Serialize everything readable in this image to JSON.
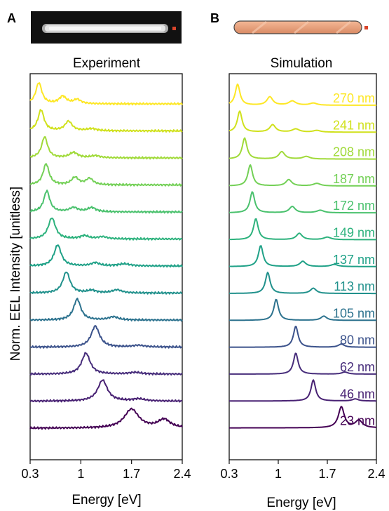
{
  "panels": {
    "a": {
      "letter": "A",
      "title": "Experiment",
      "ylabel": "Norm. EEL Intensity [unitless]",
      "xlabel": "Energy [eV]",
      "image": "sem-nanorod-micrograph"
    },
    "b": {
      "letter": "B",
      "title": "Simulation",
      "xlabel": "Energy [eV]",
      "image": "nanorod-schematic"
    }
  },
  "colors": {
    "probe_marker": "#d9452b",
    "rod_fill": "#e8a07a",
    "rod_stroke": "#444444",
    "micrograph_bg": "#111111"
  },
  "chart_data": [
    {
      "type": "line",
      "title": "Experiment",
      "xlabel": "Energy [eV]",
      "ylabel": "Norm. EEL Intensity [unitless]",
      "xlim": [
        0.3,
        2.4
      ],
      "xticks": [
        "0.3",
        "1",
        "1.7",
        "2.4"
      ],
      "grid": false,
      "legend": "none",
      "series": [
        {
          "color": "#fde725",
          "peaks": [
            [
              0.42,
              1.0,
              0.05
            ],
            [
              0.75,
              0.35,
              0.06
            ],
            [
              0.95,
              0.2,
              0.06
            ]
          ]
        },
        {
          "color": "#d0e11c",
          "peaks": [
            [
              0.45,
              1.0,
              0.05
            ],
            [
              0.83,
              0.45,
              0.06
            ],
            [
              1.15,
              0.1,
              0.08
            ]
          ]
        },
        {
          "color": "#a0da39",
          "peaks": [
            [
              0.5,
              1.0,
              0.05
            ],
            [
              0.9,
              0.25,
              0.07
            ],
            [
              1.2,
              0.1,
              0.08
            ]
          ]
        },
        {
          "color": "#73d056",
          "peaks": [
            [
              0.52,
              1.0,
              0.05
            ],
            [
              0.92,
              0.35,
              0.06
            ],
            [
              1.12,
              0.3,
              0.06
            ]
          ]
        },
        {
          "color": "#4ac16d",
          "peaks": [
            [
              0.53,
              1.0,
              0.05
            ],
            [
              0.9,
              0.2,
              0.07
            ],
            [
              1.15,
              0.2,
              0.07
            ]
          ]
        },
        {
          "color": "#2db27d",
          "peaks": [
            [
              0.6,
              1.0,
              0.06
            ],
            [
              1.05,
              0.15,
              0.07
            ],
            [
              1.3,
              0.1,
              0.08
            ]
          ]
        },
        {
          "color": "#1fa187",
          "peaks": [
            [
              0.68,
              1.0,
              0.06
            ],
            [
              1.2,
              0.15,
              0.07
            ],
            [
              1.6,
              0.1,
              0.1
            ]
          ]
        },
        {
          "color": "#21918c",
          "peaks": [
            [
              0.8,
              1.0,
              0.06
            ],
            [
              1.15,
              0.12,
              0.07
            ],
            [
              1.5,
              0.15,
              0.08
            ]
          ]
        },
        {
          "color": "#2c728e",
          "peaks": [
            [
              0.95,
              1.0,
              0.06
            ],
            [
              1.45,
              0.15,
              0.08
            ]
          ]
        },
        {
          "color": "#3b528b",
          "peaks": [
            [
              1.2,
              1.0,
              0.07
            ],
            [
              1.8,
              0.08,
              0.1
            ]
          ]
        },
        {
          "color": "#472d7b",
          "peaks": [
            [
              1.07,
              1.0,
              0.07
            ],
            [
              1.75,
              0.08,
              0.1
            ]
          ]
        },
        {
          "color": "#482173",
          "peaks": [
            [
              1.3,
              1.0,
              0.08
            ],
            [
              1.8,
              0.1,
              0.1
            ]
          ]
        },
        {
          "color": "#440154",
          "peaks": [
            [
              1.7,
              0.9,
              0.12
            ],
            [
              2.15,
              0.4,
              0.1
            ]
          ]
        }
      ]
    },
    {
      "type": "line",
      "title": "Simulation",
      "xlabel": "Energy [eV]",
      "xlim": [
        0.3,
        2.4
      ],
      "xticks": [
        "0.3",
        "1",
        "1.7",
        "2.4"
      ],
      "grid": false,
      "legend": "none",
      "series": [
        {
          "name": "270 nm",
          "color": "#fde725",
          "peaks": [
            [
              0.42,
              1.0,
              0.04
            ],
            [
              0.88,
              0.4,
              0.05
            ],
            [
              1.2,
              0.2,
              0.06
            ],
            [
              1.5,
              0.1,
              0.06
            ]
          ]
        },
        {
          "name": "241 nm",
          "color": "#d0e11c",
          "peaks": [
            [
              0.45,
              1.0,
              0.04
            ],
            [
              0.92,
              0.35,
              0.05
            ],
            [
              1.25,
              0.15,
              0.06
            ],
            [
              1.55,
              0.08,
              0.06
            ]
          ]
        },
        {
          "name": "208 nm",
          "color": "#a0da39",
          "peaks": [
            [
              0.52,
              1.0,
              0.04
            ],
            [
              1.05,
              0.35,
              0.05
            ],
            [
              1.4,
              0.12,
              0.06
            ]
          ]
        },
        {
          "name": "187 nm",
          "color": "#73d056",
          "peaks": [
            [
              0.6,
              1.0,
              0.04
            ],
            [
              1.15,
              0.3,
              0.05
            ],
            [
              1.55,
              0.12,
              0.06
            ]
          ]
        },
        {
          "name": "172 nm",
          "color": "#4ac16d",
          "peaks": [
            [
              0.63,
              1.0,
              0.04
            ],
            [
              1.2,
              0.3,
              0.05
            ],
            [
              1.6,
              0.12,
              0.06
            ]
          ]
        },
        {
          "name": "149 nm",
          "color": "#2db27d",
          "peaks": [
            [
              0.68,
              1.0,
              0.04
            ],
            [
              1.3,
              0.3,
              0.05
            ],
            [
              1.7,
              0.12,
              0.06
            ]
          ]
        },
        {
          "name": "137 nm",
          "color": "#1fa187",
          "peaks": [
            [
              0.75,
              1.0,
              0.04
            ],
            [
              1.35,
              0.25,
              0.05
            ],
            [
              1.8,
              0.1,
              0.06
            ]
          ]
        },
        {
          "name": "113 nm",
          "color": "#21918c",
          "peaks": [
            [
              0.85,
              1.0,
              0.04
            ],
            [
              1.5,
              0.25,
              0.05
            ]
          ]
        },
        {
          "name": "105 nm",
          "color": "#2c728e",
          "peaks": [
            [
              0.97,
              1.0,
              0.04
            ],
            [
              1.65,
              0.2,
              0.05
            ]
          ]
        },
        {
          "name": "80 nm",
          "color": "#3b528b",
          "peaks": [
            [
              1.25,
              1.0,
              0.04
            ],
            [
              1.9,
              0.15,
              0.05
            ]
          ]
        },
        {
          "name": "62 nm",
          "color": "#472d7b",
          "peaks": [
            [
              1.25,
              1.0,
              0.04
            ],
            [
              1.95,
              0.1,
              0.05
            ]
          ]
        },
        {
          "name": "46 nm",
          "color": "#482173",
          "peaks": [
            [
              1.5,
              1.0,
              0.04
            ],
            [
              2.1,
              0.1,
              0.05
            ]
          ]
        },
        {
          "name": "23 nm",
          "color": "#440154",
          "peaks": [
            [
              1.9,
              1.0,
              0.05
            ],
            [
              2.15,
              0.35,
              0.06
            ]
          ]
        }
      ]
    }
  ]
}
